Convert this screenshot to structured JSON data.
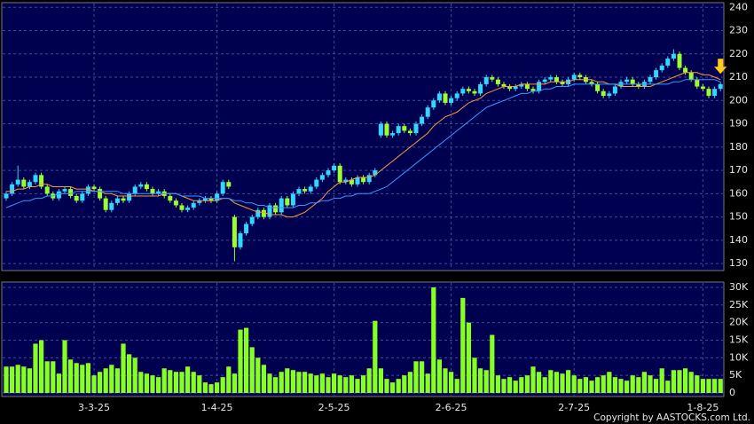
{
  "chart_data": [
    {
      "type": "candlestick",
      "up_color": "#33d6ff",
      "down_color": "#99ff33",
      "grid": true,
      "ylim": [
        127,
        242
      ],
      "yticks": [
        130,
        140,
        150,
        160,
        170,
        180,
        190,
        200,
        210,
        220,
        230,
        240
      ],
      "open": [
        158,
        160,
        164,
        166,
        163,
        165,
        168,
        163,
        160,
        158,
        161,
        162,
        159,
        157,
        160,
        163,
        162,
        158,
        153,
        156,
        158,
        157,
        160,
        163,
        164,
        162,
        160,
        161,
        159,
        157,
        155,
        153,
        154,
        156,
        157,
        158,
        157,
        160,
        165,
        150,
        137,
        143,
        147,
        150,
        153,
        150,
        155,
        152,
        158,
        155,
        160,
        162,
        161,
        163,
        166,
        168,
        170,
        172,
        165,
        166,
        164,
        167,
        165,
        168,
        185,
        190,
        185,
        186,
        189,
        187,
        186,
        190,
        193,
        197,
        200,
        203,
        199,
        201,
        203,
        205,
        204,
        203,
        207,
        210,
        209,
        207,
        206,
        205,
        206,
        207,
        205,
        204,
        208,
        209,
        210,
        208,
        207,
        209,
        211,
        210,
        208,
        207,
        204,
        202,
        203,
        206,
        208,
        209,
        207,
        206,
        208,
        210,
        213,
        215,
        218,
        220,
        214,
        212,
        209,
        206,
        205,
        202,
        205
      ],
      "high": [
        161,
        165,
        172,
        167,
        166,
        169,
        169,
        164,
        161,
        162,
        163,
        163,
        160,
        161,
        164,
        164,
        163,
        159,
        157,
        159,
        159,
        161,
        164,
        165,
        165,
        163,
        162,
        162,
        160,
        158,
        156,
        155,
        157,
        158,
        159,
        159,
        161,
        166,
        166,
        151,
        144,
        148,
        151,
        154,
        154,
        156,
        156,
        159,
        159,
        161,
        163,
        163,
        164,
        167,
        169,
        171,
        173,
        173,
        167,
        167,
        168,
        168,
        169,
        171,
        191,
        191,
        187,
        190,
        190,
        188,
        191,
        194,
        198,
        201,
        204,
        204,
        202,
        204,
        206,
        206,
        205,
        208,
        211,
        211,
        210,
        208,
        207,
        207,
        208,
        208,
        206,
        209,
        210,
        211,
        211,
        209,
        210,
        212,
        212,
        211,
        209,
        208,
        205,
        204,
        207,
        209,
        210,
        210,
        208,
        209,
        211,
        214,
        216,
        219,
        222,
        221,
        215,
        213,
        210,
        207,
        206,
        206,
        208
      ],
      "low": [
        157,
        159,
        163,
        162,
        162,
        164,
        162,
        159,
        157,
        157,
        160,
        158,
        156,
        156,
        159,
        161,
        157,
        152,
        152,
        155,
        156,
        156,
        159,
        162,
        161,
        159,
        159,
        158,
        156,
        154,
        152,
        152,
        153,
        155,
        156,
        156,
        156,
        159,
        162,
        131,
        136,
        142,
        146,
        149,
        149,
        149,
        151,
        151,
        154,
        154,
        159,
        160,
        160,
        162,
        165,
        167,
        169,
        164,
        164,
        163,
        163,
        164,
        164,
        167,
        184,
        184,
        184,
        185,
        186,
        185,
        185,
        189,
        192,
        196,
        199,
        198,
        198,
        200,
        202,
        203,
        202,
        202,
        206,
        208,
        206,
        205,
        204,
        204,
        205,
        204,
        203,
        203,
        207,
        208,
        207,
        206,
        206,
        208,
        209,
        207,
        206,
        203,
        201,
        201,
        202,
        205,
        207,
        206,
        205,
        205,
        207,
        209,
        212,
        214,
        217,
        213,
        211,
        208,
        205,
        204,
        201,
        201,
        204
      ],
      "close": [
        160,
        164,
        166,
        163,
        165,
        168,
        163,
        160,
        158,
        161,
        162,
        159,
        157,
        160,
        163,
        162,
        158,
        153,
        156,
        158,
        157,
        160,
        163,
        164,
        162,
        160,
        161,
        159,
        157,
        155,
        153,
        154,
        156,
        157,
        158,
        157,
        160,
        165,
        163,
        137,
        143,
        147,
        150,
        153,
        150,
        155,
        152,
        158,
        155,
        160,
        162,
        161,
        163,
        166,
        168,
        170,
        172,
        165,
        166,
        164,
        167,
        165,
        168,
        170,
        190,
        185,
        186,
        189,
        187,
        186,
        190,
        193,
        197,
        200,
        203,
        199,
        201,
        203,
        205,
        204,
        203,
        207,
        210,
        209,
        207,
        206,
        205,
        206,
        207,
        205,
        204,
        208,
        209,
        210,
        208,
        207,
        209,
        211,
        210,
        208,
        207,
        204,
        202,
        203,
        206,
        208,
        209,
        207,
        206,
        208,
        210,
        213,
        215,
        218,
        220,
        214,
        212,
        209,
        206,
        205,
        202,
        205,
        207
      ],
      "series": [
        {
          "color": "#ff9933",
          "values": [
            161,
            161,
            162,
            162,
            163,
            163,
            164,
            164,
            163,
            163,
            163,
            163,
            162,
            162,
            162,
            161,
            161,
            160,
            160,
            159,
            159,
            159,
            159,
            159,
            159,
            159,
            159,
            160,
            160,
            160,
            159,
            158,
            157,
            157,
            157,
            157,
            157,
            158,
            158,
            156,
            155,
            154,
            153,
            152,
            152,
            151,
            151,
            151,
            150,
            150,
            151,
            152,
            154,
            156,
            158,
            161,
            163,
            165,
            165,
            166,
            167,
            167,
            167,
            168,
            170,
            172,
            174,
            176,
            178,
            180,
            182,
            184,
            186,
            189,
            191,
            193,
            194,
            195,
            197,
            199,
            200,
            201,
            203,
            204,
            205,
            206,
            206,
            206,
            207,
            207,
            207,
            207,
            207,
            208,
            208,
            208,
            208,
            209,
            209,
            209,
            209,
            208,
            208,
            207,
            207,
            206,
            206,
            206,
            206,
            206,
            206,
            207,
            208,
            209,
            210,
            211,
            212,
            212,
            212,
            211,
            211,
            210,
            209
          ]
        },
        {
          "color": "#3399ff",
          "values": [
            154,
            155,
            156,
            157,
            157,
            158,
            158,
            159,
            159,
            160,
            160,
            160,
            161,
            161,
            161,
            161,
            161,
            161,
            161,
            161,
            160,
            160,
            160,
            160,
            160,
            160,
            160,
            160,
            160,
            160,
            159,
            159,
            159,
            159,
            158,
            158,
            158,
            158,
            158,
            157,
            157,
            156,
            156,
            155,
            155,
            154,
            154,
            154,
            154,
            154,
            155,
            155,
            156,
            156,
            157,
            157,
            158,
            158,
            159,
            159,
            160,
            160,
            160,
            161,
            162,
            163,
            165,
            167,
            169,
            171,
            173,
            175,
            177,
            179,
            181,
            183,
            185,
            187,
            189,
            191,
            193,
            195,
            197,
            198,
            199,
            200,
            201,
            202,
            203,
            203,
            204,
            204,
            205,
            205,
            206,
            206,
            206,
            207,
            207,
            207,
            207,
            207,
            207,
            207,
            207,
            207,
            207,
            207,
            207,
            207,
            207,
            207,
            207,
            207,
            208,
            208,
            209,
            209,
            209,
            209,
            209,
            209,
            208
          ]
        }
      ]
    },
    {
      "type": "bar",
      "color": "#88ff22",
      "grid": true,
      "ylim": [
        -1000,
        31500
      ],
      "yticks": [
        0,
        {
          "value": 5000,
          "label": "5K"
        },
        {
          "value": 10000,
          "label": "10K"
        },
        {
          "value": 15000,
          "label": "15K"
        },
        {
          "value": 20000,
          "label": "20K"
        },
        {
          "value": 25000,
          "label": "25K"
        },
        {
          "value": 30000,
          "label": "30K"
        }
      ],
      "categories": [
        null,
        null,
        null,
        null,
        null,
        null,
        null,
        null,
        null,
        null,
        null,
        null,
        null,
        null,
        null,
        "3-3-25",
        null,
        null,
        null,
        null,
        null,
        null,
        null,
        null,
        null,
        null,
        null,
        null,
        null,
        null,
        null,
        null,
        null,
        null,
        null,
        null,
        "1-4-25",
        null,
        null,
        null,
        null,
        null,
        null,
        null,
        null,
        null,
        null,
        null,
        null,
        null,
        null,
        null,
        null,
        null,
        null,
        null,
        "2-5-25",
        null,
        null,
        null,
        null,
        null,
        null,
        null,
        null,
        null,
        null,
        null,
        null,
        null,
        null,
        null,
        null,
        null,
        null,
        null,
        "2-6-25",
        null,
        null,
        null,
        null,
        null,
        null,
        null,
        null,
        null,
        null,
        null,
        null,
        null,
        null,
        null,
        null,
        null,
        null,
        null,
        null,
        "2-7-25",
        null,
        null,
        null,
        null,
        null,
        null,
        null,
        null,
        null,
        null,
        null,
        null,
        null,
        null,
        null,
        null,
        null,
        null,
        null,
        null,
        null,
        "1-8-25",
        null,
        null,
        null
      ],
      "values": [
        7500,
        7500,
        8000,
        7500,
        7000,
        14000,
        15000,
        9000,
        9000,
        5500,
        15000,
        9500,
        8500,
        8000,
        8500,
        5000,
        6000,
        7000,
        8000,
        7000,
        14000,
        11000,
        10000,
        6000,
        5500,
        5000,
        4500,
        7000,
        6500,
        6000,
        6000,
        7500,
        6000,
        5000,
        3000,
        2500,
        3000,
        4500,
        7500,
        5500,
        18000,
        18500,
        13000,
        10000,
        8000,
        5500,
        4500,
        6000,
        7000,
        6500,
        6000,
        6000,
        5500,
        5000,
        5500,
        4500,
        5500,
        5000,
        4500,
        5000,
        4000,
        5000,
        7000,
        20500,
        7000,
        4000,
        3000,
        4000,
        5000,
        6000,
        9000,
        9000,
        5500,
        30000,
        9500,
        7000,
        6000,
        4000,
        27000,
        20000,
        10000,
        7000,
        6500,
        16500,
        5000,
        4000,
        4500,
        3500,
        4500,
        5000,
        7500,
        6000,
        4500,
        6500,
        6000,
        5500,
        6500,
        5000,
        4000,
        4500,
        3500,
        4500,
        5000,
        6000,
        4500,
        4000,
        3500,
        5000,
        4500,
        6000,
        5000,
        4000,
        7000,
        3500,
        6500,
        6500,
        7000,
        6000,
        5000,
        4000,
        4000,
        4000,
        4000
      ]
    }
  ],
  "copyright": "Copyright by AASTOCKS.com Ltd."
}
